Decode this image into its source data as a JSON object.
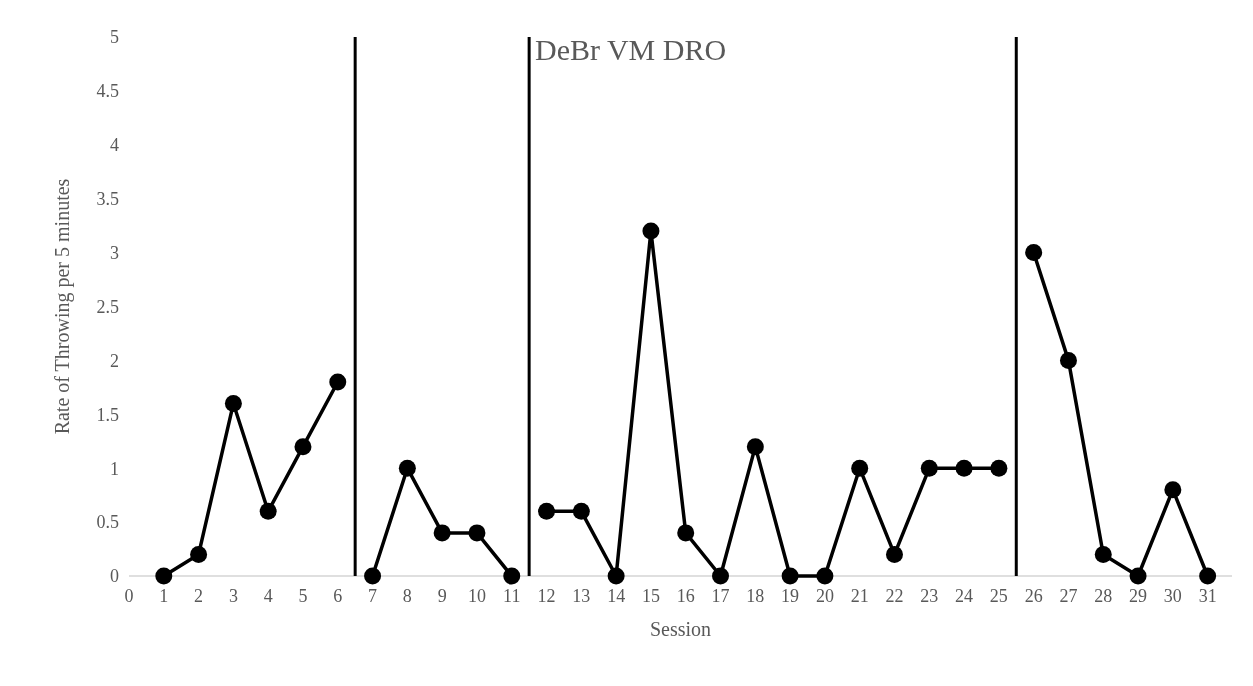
{
  "chart_data": {
    "type": "line",
    "xlabel": "Session",
    "ylabel": "Rate of Throwing per 5 minutes",
    "annotations": [
      "DeBr VM DRO"
    ],
    "xlim": [
      0,
      31.7
    ],
    "xticks": [
      0,
      1,
      2,
      3,
      4,
      5,
      6,
      7,
      8,
      9,
      10,
      11,
      12,
      13,
      14,
      15,
      16,
      17,
      18,
      19,
      20,
      21,
      22,
      23,
      24,
      25,
      26,
      27,
      28,
      29,
      30,
      31
    ],
    "ylim": [
      0,
      5
    ],
    "yticks": [
      0,
      0.5,
      1,
      1.5,
      2,
      2.5,
      3,
      3.5,
      4,
      4.5,
      5
    ],
    "grid": false,
    "marker": "circle",
    "line_style": "solid",
    "series": [
      {
        "color": "#000000",
        "x": [
          1,
          2,
          3,
          4,
          5,
          6
        ],
        "values": [
          0,
          0.2,
          1.6,
          0.6,
          1.2,
          1.8
        ]
      },
      {
        "color": "#000000",
        "x": [
          7,
          8,
          9,
          10,
          11
        ],
        "values": [
          0,
          1,
          0.4,
          0.4,
          0
        ]
      },
      {
        "color": "#000000",
        "x": [
          12,
          13,
          14,
          15,
          16,
          17,
          18,
          19,
          20,
          21,
          22,
          23,
          24,
          25
        ],
        "values": [
          0.6,
          0.6,
          0,
          3.2,
          0.4,
          0,
          1.2,
          0,
          0,
          1,
          0.2,
          1,
          1,
          1
        ]
      },
      {
        "color": "#000000",
        "x": [
          26,
          27,
          28,
          29,
          30,
          31
        ],
        "values": [
          3,
          2,
          0.2,
          0,
          0.8,
          0
        ]
      }
    ],
    "ref_lines": [
      {
        "axis": "x",
        "value": 6.5,
        "color": "#000000"
      },
      {
        "axis": "x",
        "value": 11.5,
        "color": "#000000"
      },
      {
        "axis": "x",
        "value": 25.5,
        "color": "#000000"
      }
    ]
  }
}
